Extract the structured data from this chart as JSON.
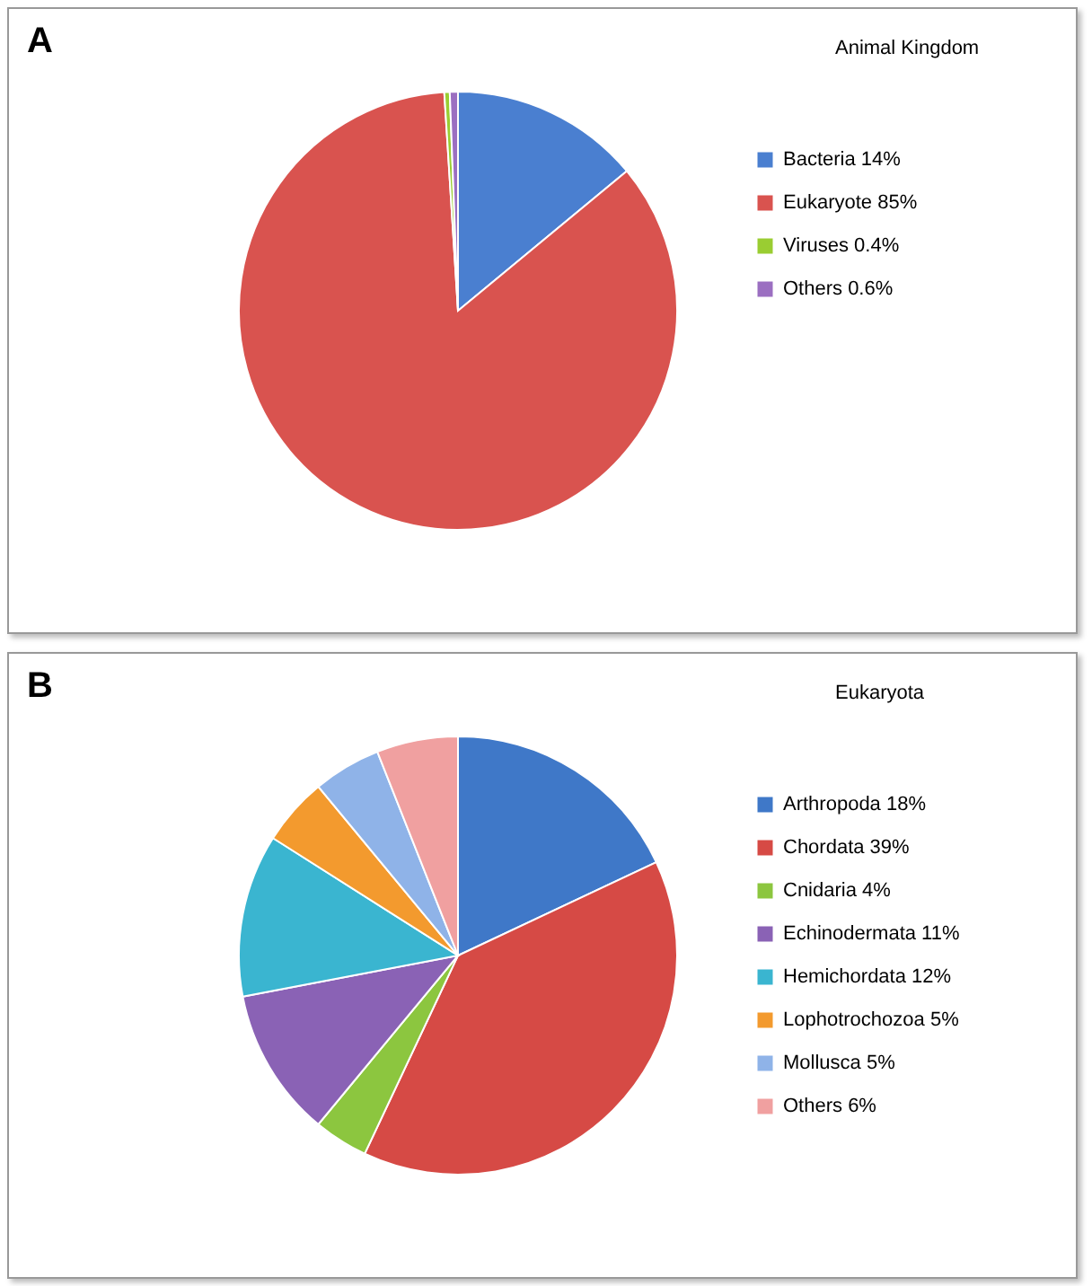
{
  "chart_data": [
    {
      "type": "pie",
      "title": "Animal Kingdom",
      "annotations": [
        "A"
      ],
      "legend": "right",
      "categories": [
        "Bacteria",
        "Eukaryote",
        "Viruses",
        "Others"
      ],
      "values": [
        14,
        85,
        0.4,
        0.6
      ],
      "value_labels": [
        "14%",
        "85%",
        "0.4%",
        "0.6%"
      ],
      "colors": [
        "#4a7fd0",
        "#d9534f",
        "#9acd32",
        "#9b6fc1"
      ]
    },
    {
      "type": "pie",
      "title": "Eukaryota",
      "annotations": [
        "B"
      ],
      "legend": "right",
      "categories": [
        "Arthropoda",
        "Chordata",
        "Cnidaria",
        "Echinodermata",
        "Hemichordata",
        "Lophotrochozoa",
        "Mollusca",
        "Others"
      ],
      "values": [
        18,
        39,
        4,
        11,
        12,
        5,
        5,
        6
      ],
      "value_labels": [
        "18%",
        "39%",
        "4%",
        "11%",
        "12%",
        "5%",
        "5%",
        "6%"
      ],
      "colors": [
        "#3f78c8",
        "#d64a45",
        "#8cc63f",
        "#8a62b5",
        "#3ab5d0",
        "#f39a2e",
        "#8fb3e8",
        "#f0a0a0"
      ]
    }
  ]
}
